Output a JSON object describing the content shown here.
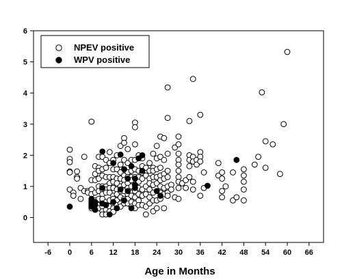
{
  "chart_data": {
    "type": "scatter",
    "title": "",
    "xlabel": "Age in Months",
    "ylabel": "",
    "xlim": [
      -10,
      70
    ],
    "ylim": [
      -0.8,
      6
    ],
    "xticks": [
      -6,
      0,
      6,
      12,
      18,
      24,
      30,
      36,
      42,
      48,
      54,
      60,
      66
    ],
    "yticks": [
      0,
      1,
      2,
      3,
      4,
      5,
      6
    ],
    "grid": false,
    "legend": {
      "placement": "top-left"
    },
    "series": [
      {
        "name": "NPEV positive",
        "marker": "open-circle",
        "color": "#000000",
        "points": [
          [
            0,
            2.18
          ],
          [
            0,
            1.88
          ],
          [
            0,
            1.78
          ],
          [
            0,
            1.48
          ],
          [
            0,
            1.45
          ],
          [
            0,
            0.9
          ],
          [
            1,
            0.8
          ],
          [
            1,
            0.7
          ],
          [
            2,
            1.48
          ],
          [
            2,
            1.3
          ],
          [
            2,
            1.25
          ],
          [
            3,
            0.95
          ],
          [
            3,
            0.6
          ],
          [
            4,
            1.95
          ],
          [
            4,
            0.85
          ],
          [
            5,
            0.85
          ],
          [
            5,
            0.8
          ],
          [
            6,
            3.08
          ],
          [
            6,
            1.2
          ],
          [
            6,
            0.9
          ],
          [
            6,
            0.75
          ],
          [
            6,
            0.55
          ],
          [
            6,
            0.5
          ],
          [
            6,
            0.4
          ],
          [
            6,
            0.35
          ],
          [
            6,
            0.3
          ],
          [
            7,
            1.65
          ],
          [
            7,
            1.4
          ],
          [
            7,
            1.2
          ],
          [
            7,
            0.8
          ],
          [
            7,
            0.55
          ],
          [
            7,
            0.5
          ],
          [
            7,
            0.25
          ],
          [
            8,
            1.95
          ],
          [
            8,
            1.6
          ],
          [
            8,
            1.5
          ],
          [
            8,
            1.25
          ],
          [
            8,
            1.0
          ],
          [
            8,
            0.85
          ],
          [
            8,
            0.6
          ],
          [
            8,
            0.4
          ],
          [
            8,
            0.3
          ],
          [
            9,
            1.95
          ],
          [
            9,
            1.55
          ],
          [
            9,
            1.35
          ],
          [
            9,
            1.0
          ],
          [
            9,
            0.9
          ],
          [
            9,
            0.75
          ],
          [
            9,
            0.6
          ],
          [
            9,
            0.45
          ],
          [
            9,
            0.35
          ],
          [
            9,
            0.2
          ],
          [
            9,
            0.1
          ],
          [
            10,
            1.85
          ],
          [
            10,
            1.6
          ],
          [
            10,
            1.3
          ],
          [
            10,
            1.0
          ],
          [
            10,
            0.9
          ],
          [
            10,
            0.8
          ],
          [
            10,
            0.5
          ],
          [
            10,
            0.25
          ],
          [
            10,
            0.1
          ],
          [
            11,
            2.1
          ],
          [
            11,
            1.75
          ],
          [
            11,
            1.3
          ],
          [
            11,
            1.1
          ],
          [
            11,
            0.95
          ],
          [
            11,
            0.8
          ],
          [
            11,
            0.55
          ],
          [
            11,
            0.35
          ],
          [
            11,
            0.2
          ],
          [
            12,
            1.85
          ],
          [
            12,
            1.55
          ],
          [
            12,
            1.3
          ],
          [
            12,
            1.15
          ],
          [
            12,
            0.95
          ],
          [
            12,
            0.7
          ],
          [
            12,
            0.6
          ],
          [
            12,
            0.45
          ],
          [
            12,
            0.3
          ],
          [
            12,
            0.18
          ],
          [
            13,
            2.0
          ],
          [
            13,
            1.55
          ],
          [
            13,
            1.25
          ],
          [
            13,
            1.1
          ],
          [
            13,
            0.9
          ],
          [
            13,
            0.75
          ],
          [
            13,
            0.55
          ],
          [
            13,
            0.4
          ],
          [
            13,
            0.3
          ],
          [
            14,
            2.3
          ],
          [
            14,
            1.7
          ],
          [
            14,
            1.45
          ],
          [
            14,
            1.25
          ],
          [
            14,
            1.0
          ],
          [
            14,
            0.85
          ],
          [
            14,
            0.65
          ],
          [
            14,
            0.45
          ],
          [
            14,
            0.35
          ],
          [
            15,
            2.55
          ],
          [
            15,
            2.4
          ],
          [
            15,
            1.85
          ],
          [
            15,
            1.55
          ],
          [
            15,
            1.35
          ],
          [
            15,
            1.2
          ],
          [
            15,
            1.05
          ],
          [
            15,
            0.85
          ],
          [
            15,
            0.6
          ],
          [
            15,
            0.45
          ],
          [
            16,
            2.2
          ],
          [
            16,
            1.75
          ],
          [
            16,
            1.45
          ],
          [
            16,
            1.3
          ],
          [
            16,
            1.1
          ],
          [
            16,
            0.95
          ],
          [
            16,
            0.75
          ],
          [
            16,
            0.6
          ],
          [
            16,
            0.45
          ],
          [
            17,
            1.85
          ],
          [
            17,
            1.5
          ],
          [
            17,
            1.3
          ],
          [
            17,
            1.2
          ],
          [
            17,
            1.0
          ],
          [
            17,
            0.8
          ],
          [
            17,
            0.7
          ],
          [
            17,
            0.5
          ],
          [
            17,
            0.35
          ],
          [
            18,
            3.05
          ],
          [
            18,
            2.9
          ],
          [
            18,
            2.35
          ],
          [
            18,
            1.85
          ],
          [
            18,
            1.55
          ],
          [
            18,
            1.3
          ],
          [
            18,
            1.05
          ],
          [
            18,
            0.85
          ],
          [
            18,
            0.65
          ],
          [
            18,
            0.45
          ],
          [
            18,
            0.3
          ],
          [
            19,
            2.0
          ],
          [
            19,
            1.5
          ],
          [
            19,
            1.3
          ],
          [
            19,
            1.15
          ],
          [
            19,
            0.95
          ],
          [
            19,
            0.75
          ],
          [
            19,
            0.55
          ],
          [
            19,
            0.4
          ],
          [
            20,
            1.9
          ],
          [
            20,
            1.65
          ],
          [
            20,
            1.45
          ],
          [
            20,
            1.25
          ],
          [
            20,
            0.9
          ],
          [
            20,
            0.7
          ],
          [
            20,
            0.4
          ],
          [
            21,
            1.6
          ],
          [
            21,
            1.35
          ],
          [
            21,
            1.0
          ],
          [
            21,
            0.75
          ],
          [
            21,
            0.35
          ],
          [
            21,
            0.1
          ],
          [
            22,
            1.75
          ],
          [
            22,
            1.5
          ],
          [
            22,
            1.25
          ],
          [
            22,
            1.1
          ],
          [
            22,
            0.9
          ],
          [
            22,
            0.65
          ],
          [
            22,
            0.45
          ],
          [
            23,
            2.05
          ],
          [
            23,
            1.6
          ],
          [
            23,
            1.5
          ],
          [
            23,
            1.3
          ],
          [
            23,
            1.05
          ],
          [
            23,
            0.8
          ],
          [
            23,
            0.55
          ],
          [
            23,
            0.2
          ],
          [
            24,
            2.3
          ],
          [
            24,
            1.9
          ],
          [
            24,
            1.55
          ],
          [
            24,
            1.3
          ],
          [
            24,
            1.1
          ],
          [
            24,
            0.85
          ],
          [
            24,
            0.55
          ],
          [
            24,
            0.3
          ],
          [
            25,
            2.6
          ],
          [
            25,
            1.95
          ],
          [
            25,
            1.6
          ],
          [
            25,
            1.35
          ],
          [
            25,
            1.2
          ],
          [
            25,
            1.0
          ],
          [
            25,
            0.8
          ],
          [
            25,
            0.6
          ],
          [
            26,
            2.55
          ],
          [
            26,
            1.85
          ],
          [
            26,
            1.4
          ],
          [
            26,
            1.25
          ],
          [
            26,
            0.95
          ],
          [
            26,
            0.75
          ],
          [
            26,
            0.3
          ],
          [
            27,
            4.18
          ],
          [
            27,
            3.2
          ],
          [
            27,
            2.05
          ],
          [
            27,
            1.5
          ],
          [
            27,
            1.3
          ],
          [
            27,
            1.0
          ],
          [
            27,
            0.8
          ],
          [
            27,
            0.7
          ],
          [
            28,
            1.05
          ],
          [
            28,
            0.9
          ],
          [
            29,
            2.25
          ],
          [
            29,
            0.65
          ],
          [
            30,
            2.6
          ],
          [
            30,
            2.35
          ],
          [
            30,
            2.05
          ],
          [
            30,
            1.85
          ],
          [
            30,
            1.7
          ],
          [
            30,
            1.5
          ],
          [
            30,
            1.3
          ],
          [
            30,
            1.15
          ],
          [
            30,
            0.95
          ],
          [
            30,
            0.6
          ],
          [
            31,
            1.1
          ],
          [
            32,
            1.2
          ],
          [
            32,
            0.95
          ],
          [
            33,
            3.1
          ],
          [
            33,
            2.0
          ],
          [
            33,
            1.85
          ],
          [
            33,
            1.65
          ],
          [
            33,
            1.3
          ],
          [
            34,
            4.45
          ],
          [
            34,
            1.95
          ],
          [
            34,
            1.8
          ],
          [
            34,
            1.15
          ],
          [
            34,
            0.9
          ],
          [
            35,
            1.85
          ],
          [
            35,
            1.7
          ],
          [
            36,
            3.3
          ],
          [
            36,
            2.1
          ],
          [
            36,
            1.95
          ],
          [
            36,
            1.8
          ],
          [
            36,
            0.7
          ],
          [
            37,
            1.45
          ],
          [
            37,
            0.95
          ],
          [
            41,
            1.75
          ],
          [
            41,
            1.35
          ],
          [
            42,
            1.45
          ],
          [
            42,
            1.25
          ],
          [
            42,
            0.85
          ],
          [
            42,
            0.65
          ],
          [
            43,
            1.0
          ],
          [
            45,
            1.45
          ],
          [
            45,
            0.55
          ],
          [
            46,
            0.65
          ],
          [
            48,
            1.55
          ],
          [
            48,
            1.35
          ],
          [
            48,
            1.15
          ],
          [
            48,
            0.9
          ],
          [
            48,
            0.55
          ],
          [
            51,
            1.7
          ],
          [
            52,
            1.95
          ],
          [
            53,
            4.02
          ],
          [
            54,
            2.45
          ],
          [
            54,
            1.6
          ],
          [
            56,
            2.35
          ],
          [
            58,
            1.4
          ],
          [
            59,
            3.0
          ],
          [
            60,
            5.32
          ]
        ]
      },
      {
        "name": "WPV positive",
        "marker": "filled-circle",
        "color": "#000000",
        "points": [
          [
            0,
            0.35
          ],
          [
            6,
            0.6
          ],
          [
            6,
            0.45
          ],
          [
            6,
            0.35
          ],
          [
            7,
            0.25
          ],
          [
            7,
            0.4
          ],
          [
            7,
            0.5
          ],
          [
            9,
            2.12
          ],
          [
            9,
            0.95
          ],
          [
            9,
            0.45
          ],
          [
            10,
            0.4
          ],
          [
            11,
            0.1
          ],
          [
            12,
            1.75
          ],
          [
            12,
            0.5
          ],
          [
            13,
            0.3
          ],
          [
            14,
            2.02
          ],
          [
            14,
            0.9
          ],
          [
            15,
            1.55
          ],
          [
            15,
            0.55
          ],
          [
            16,
            1.25
          ],
          [
            16,
            0.85
          ],
          [
            17,
            1.65
          ],
          [
            17,
            0.3
          ],
          [
            18,
            1.25
          ],
          [
            18,
            0.95
          ],
          [
            18,
            1.05
          ],
          [
            19,
            1.9
          ],
          [
            20,
            2.0
          ],
          [
            20,
            1.5
          ],
          [
            24,
            0.85
          ],
          [
            25,
            0.7
          ],
          [
            38,
            1.02
          ],
          [
            46,
            1.85
          ]
        ]
      }
    ]
  }
}
